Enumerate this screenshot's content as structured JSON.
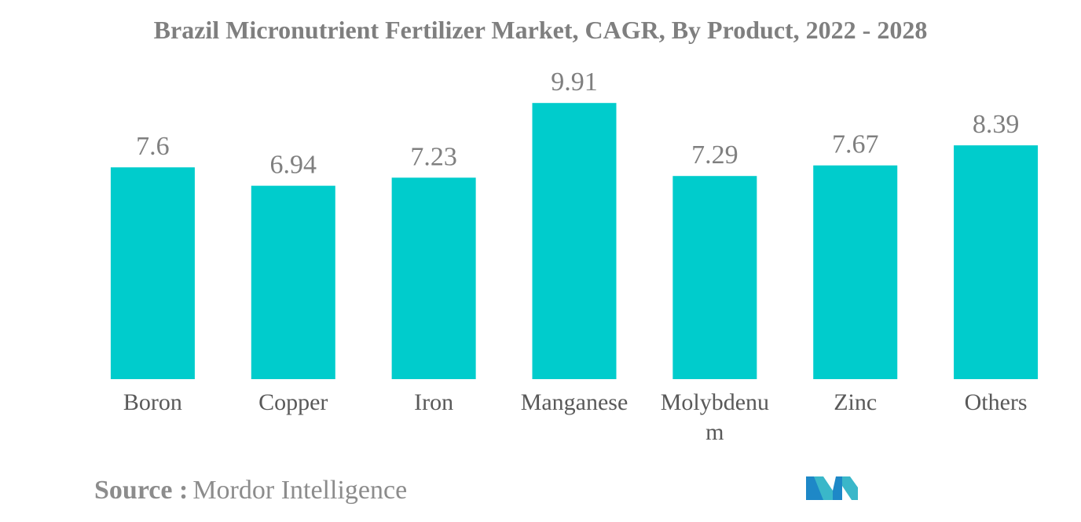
{
  "colors": {
    "bar": "#00cccc",
    "title": "#7f7f7f",
    "label": "#595959",
    "source": "#8c8c8c"
  },
  "source": {
    "label": "Source :",
    "value": "Mordor Intelligence"
  },
  "logo": {
    "icon": "mordor-intelligence-logo"
  },
  "chart_data": {
    "type": "bar",
    "title": "Brazil Micronutrient Fertilizer Market, CAGR, By Product, 2022 - 2028",
    "xlabel": "",
    "ylabel": "",
    "categories": [
      "Boron",
      "Copper",
      "Iron",
      "Manganese",
      "Molybdenum",
      "Zinc",
      "Others"
    ],
    "category_lines": [
      [
        "Boron"
      ],
      [
        "Copper"
      ],
      [
        "Iron"
      ],
      [
        "Manganese"
      ],
      [
        "Molybdenu",
        "m"
      ],
      [
        "Zinc"
      ],
      [
        "Others"
      ]
    ],
    "values": [
      7.6,
      6.94,
      7.23,
      9.91,
      7.29,
      7.67,
      8.39
    ],
    "value_labels": [
      "7.6",
      "6.94",
      "7.23",
      "9.91",
      "7.29",
      "7.67",
      "8.39"
    ],
    "ylim": [
      0,
      10
    ],
    "grid": false,
    "legend": "none",
    "data_labels": true
  }
}
